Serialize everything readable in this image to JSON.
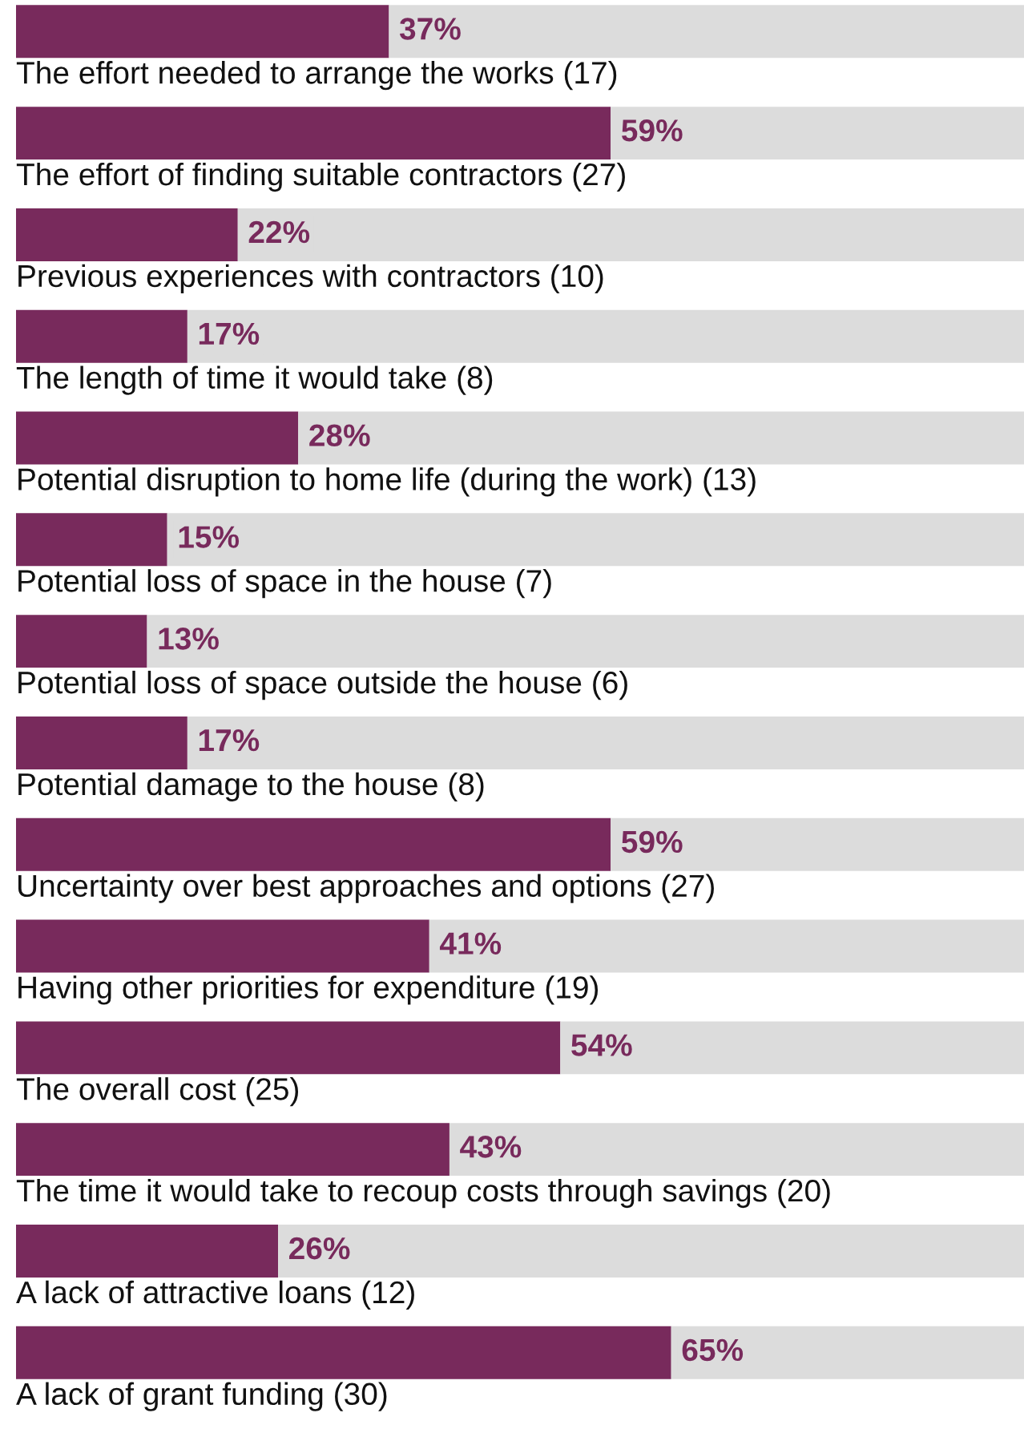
{
  "chart_data": {
    "type": "bar",
    "orientation": "horizontal",
    "stacked": true,
    "categories": [
      "The effort needed to arrange the works (17)",
      "The effort of finding suitable contractors (27)",
      "Previous experiences with contractors (10)",
      "The length of time it would take (8)",
      "Potential disruption to home life (during the work) (13)",
      "Potential loss of space in the house (7)",
      "Potential loss of space outside the house (6)",
      "Potential damage to the house (8)",
      "Uncertainty over best approaches and options (27)",
      "Having other priorities for expenditure (19)",
      "The overall cost (25)",
      "The time it would take to recoup costs through savings (20)",
      "A lack of attractive loans (12)",
      "A lack of grant funding (30)"
    ],
    "series": [
      {
        "color": "#782a5c",
        "values": [
          37,
          59,
          22,
          17,
          28,
          15,
          13,
          17,
          59,
          41,
          54,
          43,
          26,
          65
        ],
        "value_labels": [
          "37%",
          "59%",
          "22%",
          "17%",
          "28%",
          "15%",
          "13%",
          "17%",
          "59%",
          "41%",
          "54%",
          "43%",
          "26%",
          "65%"
        ]
      },
      {
        "color": "#dcdcdc",
        "values": [
          63,
          41,
          78,
          83,
          72,
          85,
          87,
          83,
          41,
          59,
          46,
          57,
          74,
          35
        ]
      }
    ],
    "xlim": [
      0,
      100
    ]
  }
}
